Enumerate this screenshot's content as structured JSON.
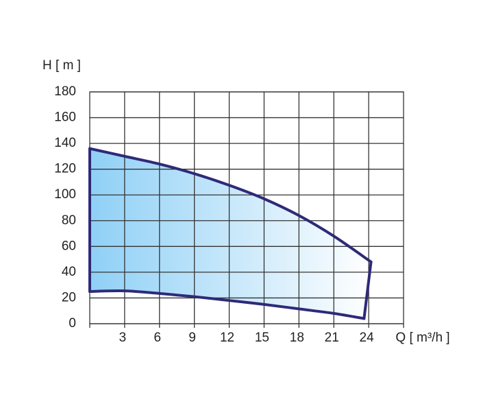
{
  "chart_data": {
    "type": "envelope",
    "y_label": "H [ m ]",
    "x_label": "Q [ m³/h ]",
    "xlim": [
      0,
      27
    ],
    "ylim": [
      0,
      180
    ],
    "xticks": [
      3,
      6,
      9,
      12,
      15,
      18,
      21,
      24
    ],
    "yticks": [
      0,
      20,
      40,
      60,
      80,
      100,
      120,
      140,
      160,
      180
    ],
    "grid": true,
    "color": "#2e2a78",
    "fill": [
      "#8fd0f6",
      "#ffffff"
    ],
    "series": [
      {
        "x": [
          0,
          3,
          6,
          9,
          12,
          15,
          18,
          21,
          24.2
        ],
        "values": [
          136,
          130,
          124,
          116.5,
          107.5,
          97,
          84,
          68,
          48
        ]
      },
      {
        "x": [
          0,
          3,
          6,
          9,
          12,
          15,
          18,
          21,
          23.6
        ],
        "values": [
          25,
          25.5,
          23.5,
          21,
          18,
          15,
          11.5,
          8,
          4
        ]
      }
    ]
  }
}
